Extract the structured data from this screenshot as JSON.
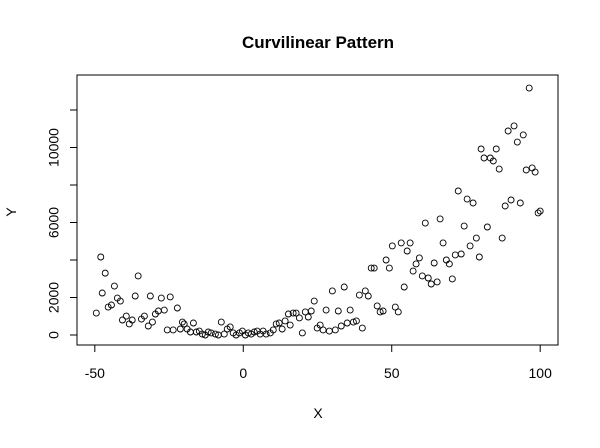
{
  "chart_data": {
    "type": "scatter",
    "title": "Curvilinear Pattern",
    "x_label": "X",
    "y_label": "Y",
    "x": [
      -49.5,
      -48,
      -47.5,
      -46.5,
      -45.5,
      -44.4,
      -43.4,
      -42.4,
      -41.4,
      -40.7,
      -39.4,
      -38.4,
      -37.4,
      -36.4,
      -35.4,
      -34.3,
      -33.3,
      -32,
      -31.3,
      -30.6,
      -29.6,
      -28.6,
      -27.6,
      -26.6,
      -25.6,
      -24.6,
      -23.6,
      -22.2,
      -21.2,
      -20.5,
      -19.9,
      -18.9,
      -17.8,
      -16.8,
      -15.8,
      -14.8,
      -13.8,
      -12.8,
      -11.8,
      -10.8,
      -9.4,
      -8.4,
      -7.4,
      -6.4,
      -5.4,
      -4.4,
      -3.4,
      -2.4,
      -1.3,
      -0.3,
      0.7,
      1.7,
      2.7,
      3.7,
      4.7,
      5.7,
      6.7,
      7.7,
      9.1,
      10.1,
      11.1,
      12.1,
      13.1,
      14.1,
      15.2,
      15.8,
      16.8,
      17.8,
      18.9,
      19.9,
      20.9,
      21.9,
      22.9,
      23.9,
      24.9,
      25.9,
      26.9,
      27.9,
      29,
      30,
      31,
      32,
      33,
      34,
      35,
      36,
      37.1,
      38.1,
      39.1,
      40.1,
      41.1,
      42.1,
      43.1,
      44.1,
      45.1,
      46.1,
      47.1,
      48.1,
      49.2,
      50.2,
      51.2,
      52.2,
      53.2,
      54.2,
      55.2,
      56.2,
      57.2,
      58.2,
      59.3,
      60.3,
      61.3,
      62.3,
      63.3,
      64.3,
      65.3,
      66.3,
      67.3,
      68.4,
      69.4,
      70.4,
      71.4,
      72.4,
      73.4,
      74.4,
      75.4,
      76.4,
      77.4,
      78.5,
      79.5,
      80.1,
      81.1,
      82.2,
      83.2,
      84.2,
      85.2,
      86.2,
      87.2,
      88.2,
      89.2,
      90.2,
      91.2,
      92.3,
      93.3,
      94.3,
      95.3,
      96.3,
      97.3,
      98.3,
      99.3,
      100
    ],
    "values": [
      1170,
      4160,
      2240,
      3300,
      1490,
      1600,
      2610,
      1970,
      1810,
      800,
      1010,
      590,
      800,
      2080,
      3150,
      850,
      1010,
      480,
      2080,
      690,
      1120,
      1280,
      1970,
      1330,
      270,
      2030,
      270,
      1440,
      320,
      690,
      590,
      320,
      160,
      640,
      160,
      210,
      50,
      0,
      160,
      110,
      50,
      0,
      690,
      50,
      320,
      430,
      110,
      0,
      110,
      210,
      0,
      110,
      50,
      160,
      210,
      50,
      210,
      50,
      110,
      270,
      590,
      640,
      320,
      750,
      1120,
      530,
      1170,
      1170,
      910,
      110,
      1230,
      960,
      1280,
      1810,
      370,
      530,
      270,
      1330,
      210,
      2350,
      270,
      1280,
      480,
      2560,
      640,
      1330,
      690,
      750,
      2130,
      370,
      2350,
      2080,
      3570,
      3570,
      1550,
      1230,
      1280,
      4000,
      3570,
      4750,
      1490,
      1230,
      4910,
      2560,
      4480,
      4910,
      3410,
      3790,
      4110,
      3150,
      5970,
      3040,
      2720,
      3840,
      2830,
      6190,
      4910,
      4000,
      3790,
      2990,
      4270,
      7680,
      4320,
      5810,
      7250,
      4750,
      7040,
      5170,
      4160,
      9920,
      9440,
      5760,
      9440,
      9280,
      9920,
      8850,
      5170,
      6880,
      10880,
      7200,
      11150,
      10290,
      7040,
      10670,
      8800,
      13170,
      8910,
      8690,
      6510,
      6610
    ],
    "color": "#000000",
    "xlim": [
      -56,
      106
    ],
    "ylim": [
      -533,
      13866
    ],
    "xticks": [
      -50,
      0,
      50,
      100
    ],
    "yticks": [
      0,
      2000,
      4000,
      6000,
      8000,
      10000,
      12000
    ]
  }
}
